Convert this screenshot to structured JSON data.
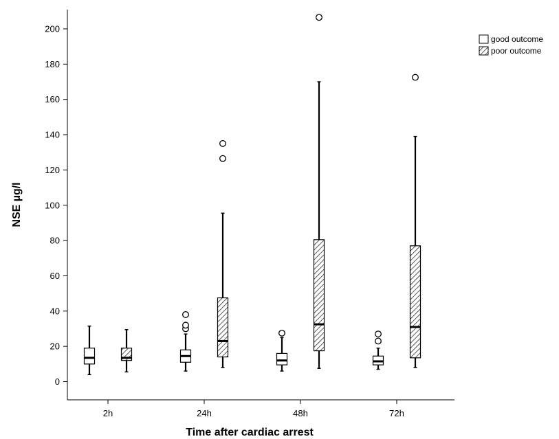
{
  "chart_data": {
    "type": "boxplot",
    "xlabel": "Time after cardiac arrest",
    "ylabel": "NSE µg/l",
    "ylim": [
      -10,
      215
    ],
    "yticks": [
      0,
      20,
      40,
      60,
      80,
      100,
      120,
      140,
      160,
      180,
      200
    ],
    "categories": [
      "2h",
      "24h",
      "48h",
      "72h"
    ],
    "grid": false,
    "legend_position": "top-right",
    "series": [
      {
        "name": "good outcome",
        "pattern": "plain",
        "boxes": [
          {
            "category": "2h",
            "whisker_low": 4,
            "q1": 10,
            "median": 13.5,
            "q3": 19,
            "whisker_high": 31.5,
            "outliers": []
          },
          {
            "category": "24h",
            "whisker_low": 6,
            "q1": 11,
            "median": 14.5,
            "q3": 18,
            "whisker_high": 27,
            "outliers": [
              30,
              32,
              38
            ]
          },
          {
            "category": "48h",
            "whisker_low": 6,
            "q1": 9.5,
            "median": 12,
            "q3": 16,
            "whisker_high": 25,
            "outliers": [
              27.5
            ]
          },
          {
            "category": "72h",
            "whisker_low": 7,
            "q1": 9.5,
            "median": 11.5,
            "q3": 14.5,
            "whisker_high": 19,
            "outliers": [
              23,
              27
            ]
          }
        ]
      },
      {
        "name": "poor outcome",
        "pattern": "hatched",
        "boxes": [
          {
            "category": "2h",
            "whisker_low": 5.5,
            "q1": 12,
            "median": 13.5,
            "q3": 19,
            "whisker_high": 29.5,
            "outliers": []
          },
          {
            "category": "24h",
            "whisker_low": 8,
            "q1": 14,
            "median": 23,
            "q3": 47.5,
            "whisker_high": 95.5,
            "outliers": [
              126.5,
              135
            ]
          },
          {
            "category": "48h",
            "whisker_low": 7.5,
            "q1": 17.5,
            "median": 32.5,
            "q3": 80.5,
            "whisker_high": 170,
            "outliers": [
              206.5
            ]
          },
          {
            "category": "72h",
            "whisker_low": 8,
            "q1": 13.5,
            "median": 31,
            "q3": 77,
            "whisker_high": 139,
            "outliers": [
              172.5
            ]
          }
        ]
      }
    ]
  }
}
